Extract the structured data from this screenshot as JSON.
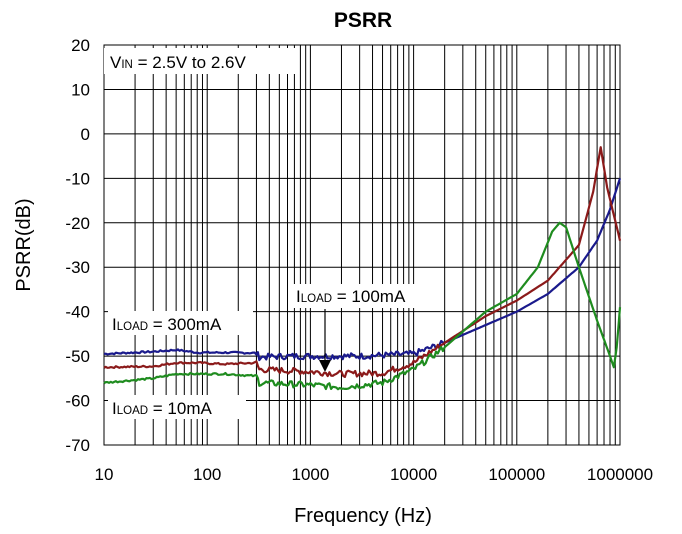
{
  "chart_data": {
    "type": "line",
    "title": "PSRR",
    "xlabel": "Frequency (Hz)",
    "ylabel": "PSRR(dB)",
    "xscale": "log",
    "xlim": [
      10,
      1000000
    ],
    "ylim": [
      -70,
      20
    ],
    "grid": true,
    "x_ticks": [
      "10",
      "100",
      "1000",
      "10000",
      "100000",
      "1000000"
    ],
    "y_ticks": [
      "20",
      "10",
      "0",
      "-10",
      "-20",
      "-30",
      "-40",
      "-50",
      "-60",
      "-70"
    ],
    "annotations": {
      "vin": {
        "prefix": "V",
        "sub": "IN",
        "suffix": " = 2.5V  to 2.6V"
      },
      "load300": {
        "prefix": "I",
        "sub": "LOAD",
        "suffix": " = 300mA"
      },
      "load100": {
        "prefix": "I",
        "sub": "LOAD",
        "suffix": " = 100mA"
      },
      "load10": {
        "prefix": "I",
        "sub": "LOAD",
        "suffix": " = 10mA"
      }
    },
    "series": [
      {
        "color": "#1a1a8c",
        "points": [
          [
            10,
            -49.5
          ],
          [
            30,
            -49
          ],
          [
            50,
            -48.6
          ],
          [
            80,
            -49.2
          ],
          [
            150,
            -49.2
          ],
          [
            300,
            -49.3
          ],
          [
            320,
            -50.2
          ],
          [
            700,
            -50
          ],
          [
            1000,
            -50
          ],
          [
            3000,
            -50
          ],
          [
            10000,
            -49.5
          ],
          [
            20000,
            -47
          ],
          [
            50000,
            -43
          ],
          [
            100000,
            -40
          ],
          [
            200000,
            -36
          ],
          [
            400000,
            -30
          ],
          [
            600000,
            -24
          ],
          [
            800000,
            -17
          ],
          [
            1000000,
            -10
          ]
        ]
      },
      {
        "color": "#8b1a1a",
        "points": [
          [
            10,
            -52.5
          ],
          [
            30,
            -52.3
          ],
          [
            50,
            -51.5
          ],
          [
            80,
            -51.5
          ],
          [
            150,
            -51.8
          ],
          [
            300,
            -51.5
          ],
          [
            320,
            -53
          ],
          [
            1000,
            -53.5
          ],
          [
            2000,
            -54
          ],
          [
            5000,
            -53.8
          ],
          [
            10000,
            -51.5
          ],
          [
            20000,
            -47
          ],
          [
            50000,
            -41
          ],
          [
            100000,
            -37.5
          ],
          [
            200000,
            -33
          ],
          [
            400000,
            -25
          ],
          [
            550000,
            -13
          ],
          [
            650000,
            -3
          ],
          [
            750000,
            -12
          ],
          [
            1000000,
            -24
          ]
        ]
      },
      {
        "color": "#1f8c1f",
        "points": [
          [
            10,
            -56
          ],
          [
            30,
            -55
          ],
          [
            50,
            -54
          ],
          [
            80,
            -54
          ],
          [
            150,
            -54
          ],
          [
            300,
            -54.5
          ],
          [
            320,
            -56
          ],
          [
            1000,
            -56.5
          ],
          [
            2000,
            -57
          ],
          [
            5000,
            -56
          ],
          [
            10000,
            -53
          ],
          [
            20000,
            -48
          ],
          [
            50000,
            -40
          ],
          [
            100000,
            -36
          ],
          [
            160000,
            -30
          ],
          [
            220000,
            -22
          ],
          [
            260000,
            -20
          ],
          [
            300000,
            -21
          ],
          [
            400000,
            -30
          ],
          [
            600000,
            -42
          ],
          [
            800000,
            -50
          ],
          [
            870000,
            -52.5
          ],
          [
            930000,
            -48
          ],
          [
            1000000,
            -39
          ]
        ]
      }
    ]
  }
}
